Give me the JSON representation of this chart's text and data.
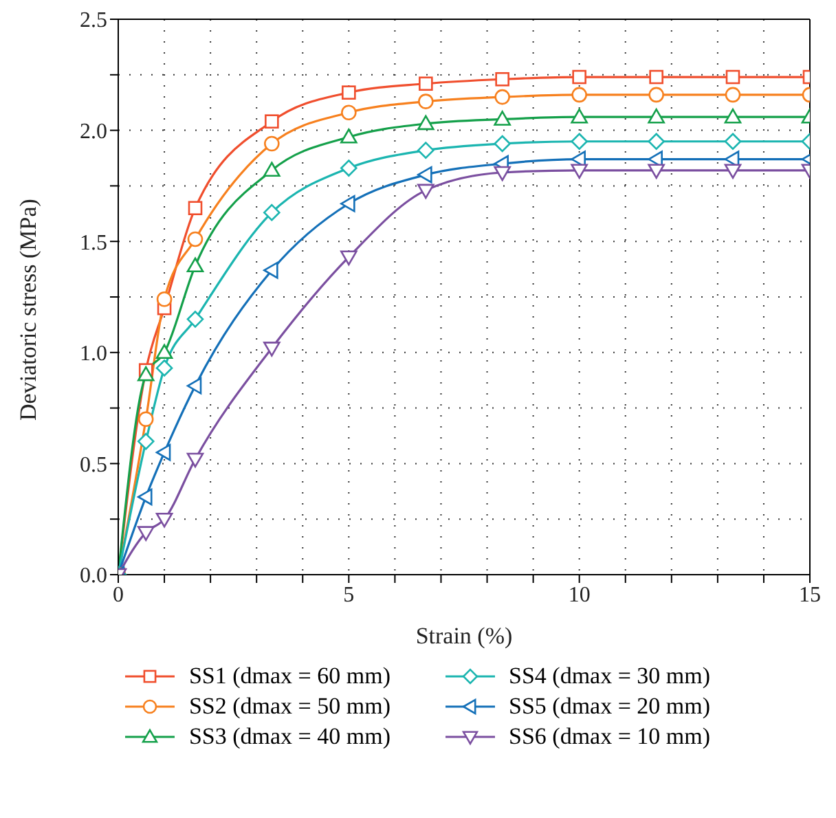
{
  "chart_data": {
    "type": "line",
    "xlabel": "Strain (%)",
    "ylabel": "Deviatoric stress (MPa)",
    "x": [
      0,
      0.6,
      1.0,
      1.67,
      3.33,
      5,
      6.67,
      8.33,
      10,
      11.67,
      13.33,
      15
    ],
    "series": [
      {
        "name": "SS1 (dmax = 60 mm)",
        "color": "#f04e2d",
        "marker": "square",
        "values": [
          0,
          0.92,
          1.2,
          1.65,
          2.04,
          2.17,
          2.21,
          2.23,
          2.24,
          2.24,
          2.24,
          2.24
        ]
      },
      {
        "name": "SS2 (dmax = 50 mm)",
        "color": "#f7801e",
        "marker": "circle",
        "values": [
          0,
          0.7,
          1.24,
          1.51,
          1.94,
          2.08,
          2.13,
          2.15,
          2.16,
          2.16,
          2.16,
          2.16
        ]
      },
      {
        "name": "SS3 (dmax = 40 mm)",
        "color": "#14a04a",
        "marker": "triangle",
        "values": [
          0,
          0.9,
          1.0,
          1.39,
          1.82,
          1.97,
          2.03,
          2.05,
          2.06,
          2.06,
          2.06,
          2.06
        ]
      },
      {
        "name": "SS4 (dmax = 30 mm)",
        "color": "#1bb5b0",
        "marker": "diamond",
        "values": [
          0,
          0.6,
          0.93,
          1.15,
          1.63,
          1.83,
          1.91,
          1.94,
          1.95,
          1.95,
          1.95,
          1.95
        ]
      },
      {
        "name": "SS5 (dmax = 20 mm)",
        "color": "#1470b8",
        "marker": "triangle-left",
        "values": [
          0,
          0.35,
          0.55,
          0.85,
          1.37,
          1.67,
          1.8,
          1.85,
          1.87,
          1.87,
          1.87,
          1.87
        ]
      },
      {
        "name": "SS6 (dmax = 10 mm)",
        "color": "#7b4fa0",
        "marker": "triangle-down",
        "values": [
          0,
          0.19,
          0.25,
          0.52,
          1.02,
          1.43,
          1.73,
          1.81,
          1.82,
          1.82,
          1.82,
          1.82
        ]
      }
    ],
    "xlim": [
      0,
      15
    ],
    "xticks": [
      0,
      {
        "value": 1,
        "label": null
      },
      {
        "value": 2,
        "label": null
      },
      {
        "value": 3,
        "label": null
      },
      {
        "value": 4,
        "label": null
      },
      5,
      {
        "value": 6,
        "label": null
      },
      {
        "value": 7,
        "label": null
      },
      {
        "value": 8,
        "label": null
      },
      {
        "value": 9,
        "label": null
      },
      10,
      {
        "value": 11,
        "label": null
      },
      {
        "value": 12,
        "label": null
      },
      {
        "value": 13,
        "label": null
      },
      {
        "value": 14,
        "label": null
      },
      15
    ],
    "ylim": [
      0,
      2.5
    ],
    "yticks": [
      {
        "value": 0,
        "label": "0.0"
      },
      {
        "value": 0.25,
        "label": null
      },
      {
        "value": 0.5,
        "label": "0.5"
      },
      {
        "value": 0.75,
        "label": null
      },
      {
        "value": 1,
        "label": "1.0"
      },
      {
        "value": 1.25,
        "label": null
      },
      {
        "value": 1.5,
        "label": "1.5"
      },
      {
        "value": 1.75,
        "label": null
      },
      {
        "value": 2,
        "label": "2.0"
      },
      {
        "value": 2.25,
        "label": null
      },
      {
        "value": 2.5,
        "label": "2.5"
      }
    ],
    "grid": true,
    "legend": "bottom",
    "line_style": "solid"
  }
}
